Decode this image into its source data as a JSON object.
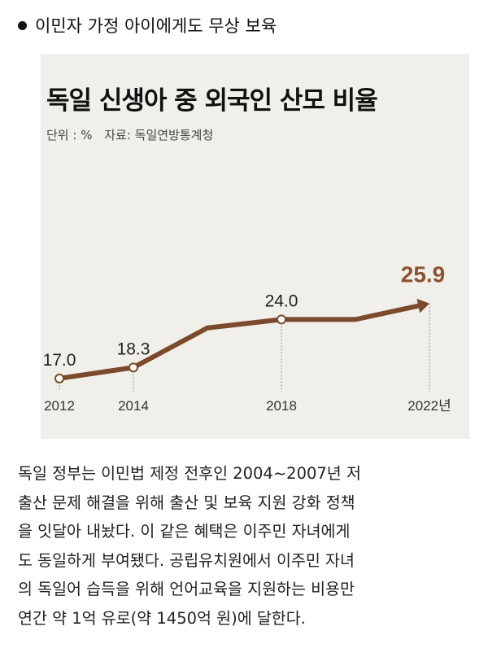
{
  "heading": "이민자 가정 아이에게도 무상 보육",
  "chart_data": {
    "type": "line",
    "title": "독일 신생아 중 외국인 산모 비율",
    "unit_label": "단위 : %",
    "source": "자료: 독일연방통계청",
    "x_unit": "년",
    "tick_labels": [
      "2012",
      "2014",
      "2018",
      "2022년"
    ],
    "series": [
      {
        "points": [
          {
            "x": 2012,
            "y": 17.0
          },
          {
            "x": 2014,
            "y": 18.3
          },
          {
            "x": 2016,
            "y": 23.0
          },
          {
            "x": 2018,
            "y": 24.0
          },
          {
            "x": 2020,
            "y": 24.0
          },
          {
            "x": 2022,
            "y": 25.9
          }
        ]
      }
    ],
    "labeled_points": [
      {
        "x": 2012,
        "y": 17.0,
        "label": "17.0"
      },
      {
        "x": 2014,
        "y": 18.3,
        "label": "18.3"
      },
      {
        "x": 2018,
        "y": 24.0,
        "label": "24.0"
      },
      {
        "x": 2022,
        "y": 25.9,
        "label": "25.9",
        "highlight": true
      }
    ],
    "xlim": [
      2012,
      2022
    ],
    "grid": false,
    "colors": {
      "line": "#7a4a2a",
      "highlight_label": "#8a5330",
      "panel_bg": "#f1efe9"
    }
  },
  "article_lines": [
    "독일 정부는 이민법 제정 전후인 2004~2007년 저",
    "출산 문제 해결을 위해 출산 및 보육 지원 강화 정책",
    "을 잇달아 내놨다. 이 같은 혜택은 이주민 자녀에게",
    "도 동일하게 부여됐다. 공립유치원에서 이주민 자녀",
    "의 독일어 습득을 위해 언어교육을 지원하는 비용만",
    "연간 약 1억 유로(약 1450억 원)에 달한다."
  ]
}
